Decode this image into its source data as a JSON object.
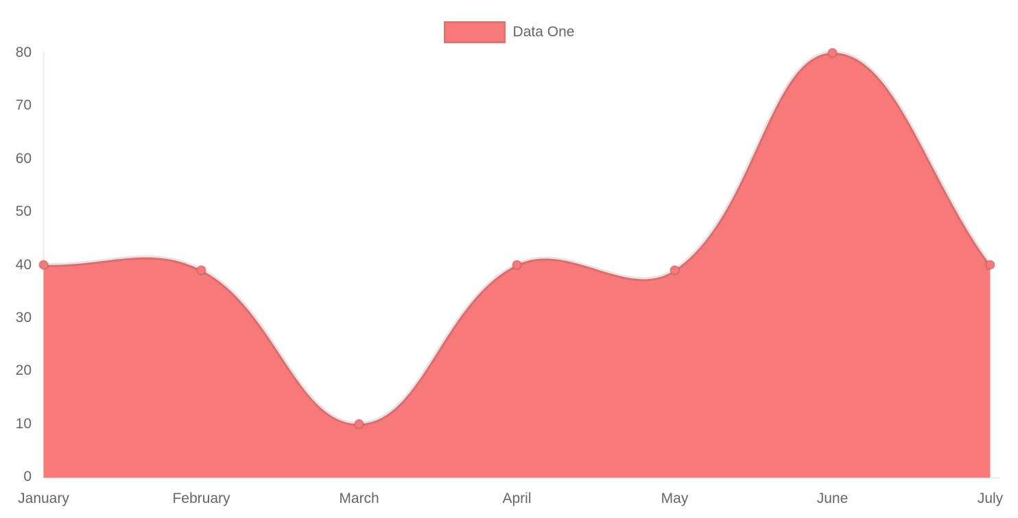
{
  "chart_data": {
    "type": "area",
    "title": "",
    "categories": [
      "January",
      "February",
      "March",
      "April",
      "May",
      "June",
      "July"
    ],
    "series": [
      {
        "name": "Data One",
        "values": [
          40,
          39,
          10,
          40,
          39,
          80,
          40
        ]
      }
    ],
    "ylim": [
      0,
      80
    ],
    "yticks": [
      0,
      10,
      20,
      30,
      40,
      50,
      60,
      70,
      80
    ],
    "line_tension": 0.4,
    "legend_position": "top",
    "grid": "off",
    "colors": {
      "fill": "#f87979",
      "point_fill": "#f87979",
      "line_stroke": "rgba(0,0,0,0.10)",
      "point_stroke": "rgba(0,0,0,0.10)",
      "axis_line": "rgba(0,0,0,0.08)",
      "tick_text": "#666666",
      "background": "#ffffff"
    }
  }
}
